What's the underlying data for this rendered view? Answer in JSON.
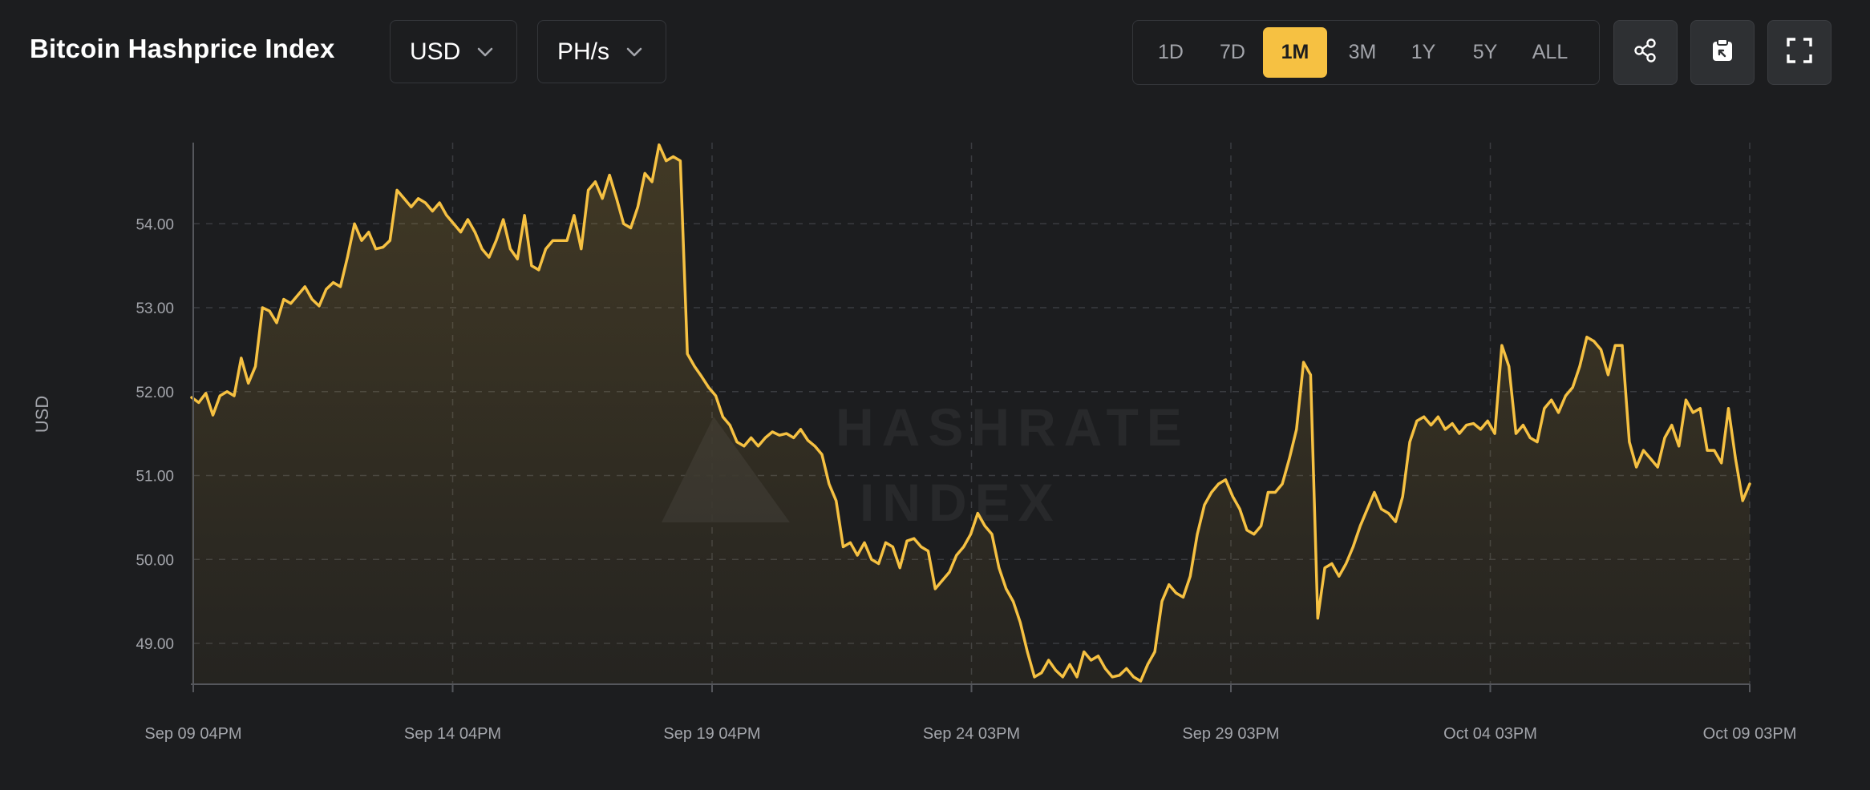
{
  "header": {
    "title": "Bitcoin Hashprice Index",
    "currency_dropdown": {
      "value": "USD",
      "icon": "chevron-down-icon"
    },
    "unit_dropdown": {
      "value": "PH/s",
      "icon": "chevron-down-icon"
    },
    "ranges": [
      "1D",
      "7D",
      "1M",
      "3M",
      "1Y",
      "5Y",
      "ALL"
    ],
    "active_range": "1M",
    "actions": [
      "share-icon",
      "clipboard-icon",
      "fullscreen-icon"
    ]
  },
  "watermark": {
    "line1": "HASHRATE",
    "line2": "INDEX"
  },
  "colors": {
    "accent": "#f6c142",
    "background": "#1c1d1f",
    "grid": "#3a3c40",
    "tick_text": "#a3a5ab"
  },
  "chart_data": {
    "type": "area",
    "title": "",
    "xlabel": "",
    "ylabel": "USD",
    "ylim": [
      48.5,
      54.9
    ],
    "yticks": [
      "54.00",
      "53.00",
      "52.00",
      "51.00",
      "50.00",
      "49.00"
    ],
    "xticks": [
      "Sep 09 04PM",
      "Sep 14 04PM",
      "Sep 19 04PM",
      "Sep 24 03PM",
      "Sep 29 03PM",
      "Oct 04 03PM",
      "Oct 09 03PM"
    ],
    "grid": true,
    "legend": "none",
    "series": [
      {
        "values": [
          51.93,
          51.87,
          51.98,
          51.72,
          51.95,
          52.0,
          51.95,
          52.4,
          52.1,
          52.3,
          53.0,
          52.96,
          52.82,
          53.1,
          53.05,
          53.15,
          53.25,
          53.1,
          53.02,
          53.22,
          53.3,
          53.25,
          53.6,
          54.0,
          53.8,
          53.9,
          53.7,
          53.72,
          53.8,
          54.4,
          54.3,
          54.2,
          54.3,
          54.25,
          54.15,
          54.25,
          54.1,
          54.0,
          53.9,
          54.05,
          53.9,
          53.7,
          53.6,
          53.8,
          54.05,
          53.7,
          53.58,
          54.1,
          53.5,
          53.45,
          53.7,
          53.8,
          53.8,
          53.8,
          54.1,
          53.7,
          54.4,
          54.5,
          54.3,
          54.58,
          54.3,
          54.0,
          53.95,
          54.2,
          54.6,
          54.5,
          54.94,
          54.75,
          54.8,
          54.75,
          52.45,
          52.3,
          52.18,
          52.05,
          51.95,
          51.7,
          51.6,
          51.4,
          51.35,
          51.45,
          51.35,
          51.45,
          51.52,
          51.48,
          51.5,
          51.45,
          51.55,
          51.42,
          51.35,
          51.25,
          50.9,
          50.7,
          50.15,
          50.2,
          50.05,
          50.2,
          50.0,
          49.95,
          50.2,
          50.15,
          49.9,
          50.22,
          50.25,
          50.15,
          50.1,
          49.65,
          49.75,
          49.85,
          50.05,
          50.15,
          50.3,
          50.55,
          50.4,
          50.3,
          49.9,
          49.65,
          49.5,
          49.25,
          48.9,
          48.6,
          48.65,
          48.8,
          48.68,
          48.6,
          48.75,
          48.6,
          48.9,
          48.8,
          48.85,
          48.7,
          48.6,
          48.62,
          48.7,
          48.6,
          48.55,
          48.75,
          48.9,
          49.5,
          49.7,
          49.6,
          49.55,
          49.8,
          50.3,
          50.65,
          50.8,
          50.9,
          50.95,
          50.75,
          50.6,
          50.35,
          50.3,
          50.4,
          50.8,
          50.8,
          50.9,
          51.2,
          51.55,
          52.35,
          52.2,
          49.3,
          49.9,
          49.95,
          49.8,
          49.95,
          50.15,
          50.4,
          50.6,
          50.8,
          50.6,
          50.55,
          50.45,
          50.75,
          51.4,
          51.65,
          51.7,
          51.6,
          51.7,
          51.55,
          51.62,
          51.5,
          51.6,
          51.62,
          51.55,
          51.65,
          51.5,
          52.55,
          52.3,
          51.5,
          51.6,
          51.45,
          51.4,
          51.8,
          51.9,
          51.75,
          51.95,
          52.05,
          52.3,
          52.65,
          52.6,
          52.5,
          52.2,
          52.55,
          52.55,
          51.4,
          51.1,
          51.3,
          51.2,
          51.1,
          51.45,
          51.6,
          51.35,
          51.9,
          51.75,
          51.8,
          51.3,
          51.3,
          51.15,
          51.8,
          51.2,
          50.7,
          50.9
        ]
      }
    ]
  }
}
